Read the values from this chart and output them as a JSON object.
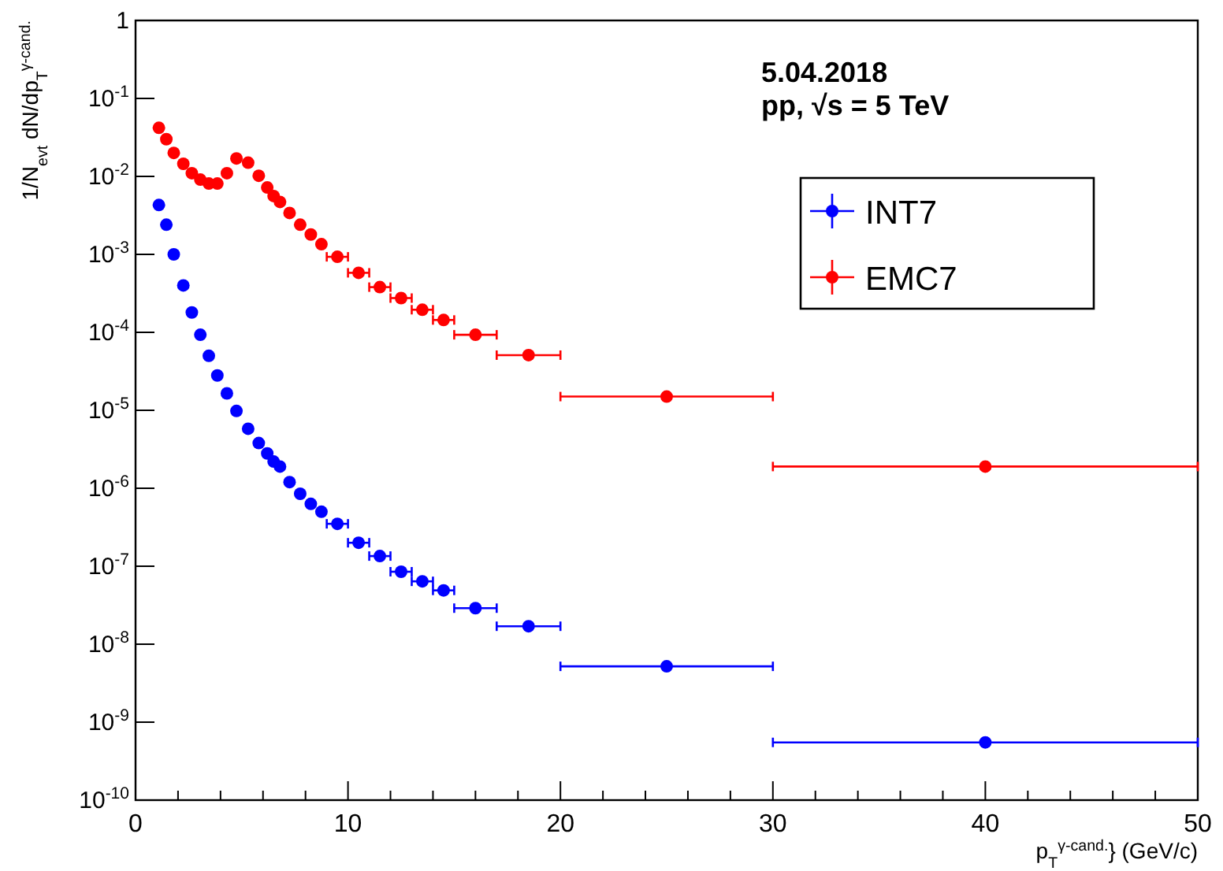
{
  "chart_data": {
    "type": "scatter",
    "xlabel": "p$_{T}$$^{γ-cand.}$} (GeV/c)",
    "ylabel": "1/N$_{evt}$ dN/dp$_{T}$$^{γ-cand.}$",
    "annotations": [
      "5.04.2018",
      "pp, √s = 5 TeV"
    ],
    "x": [
      1.1,
      1.45,
      1.8,
      2.25,
      2.65,
      3.05,
      3.45,
      3.85,
      4.3,
      4.75,
      5.3,
      5.8,
      6.2,
      6.5,
      6.8,
      7.25,
      7.75,
      8.25,
      8.75,
      9.5,
      10.5,
      11.5,
      12.5,
      13.5,
      14.5,
      16,
      18.5,
      25,
      40
    ],
    "series": [
      {
        "name": "INT7",
        "color": "#0000ff",
        "values": [
          0.0043,
          0.0024,
          0.001,
          0.0004,
          0.00018,
          9.3e-05,
          5e-05,
          2.8e-05,
          1.65e-05,
          9.8e-06,
          5.8e-06,
          3.8e-06,
          2.8e-06,
          2.2e-06,
          1.9e-06,
          1.2e-06,
          8.5e-07,
          6.3e-07,
          5e-07,
          3.5e-07,
          2e-07,
          1.35e-07,
          8.5e-08,
          6.4e-08,
          4.9e-08,
          2.9e-08,
          1.7e-08,
          5.2e-09,
          5.5e-10
        ],
        "xerrors": [
          null,
          null,
          null,
          null,
          null,
          null,
          null,
          null,
          null,
          null,
          null,
          null,
          null,
          null,
          null,
          null,
          null,
          null,
          null,
          0.5,
          0.5,
          0.5,
          0.5,
          0.5,
          0.5,
          1,
          1.5,
          5,
          10
        ]
      },
      {
        "name": "EMC7",
        "color": "#ff0000",
        "values": [
          0.042,
          0.03,
          0.02,
          0.0145,
          0.011,
          0.0091,
          0.0081,
          0.0081,
          0.011,
          0.017,
          0.015,
          0.0102,
          0.0072,
          0.0056,
          0.0047,
          0.0034,
          0.0024,
          0.0018,
          0.00135,
          0.00093,
          0.00058,
          0.00038,
          0.000275,
          0.000195,
          0.000144,
          9.3e-05,
          5.1e-05,
          1.5e-05,
          1.9e-06
        ],
        "xerrors": [
          null,
          null,
          null,
          null,
          null,
          null,
          null,
          null,
          null,
          null,
          null,
          null,
          null,
          null,
          null,
          null,
          null,
          null,
          null,
          0.5,
          0.5,
          0.5,
          0.5,
          0.5,
          0.5,
          1,
          1.5,
          5,
          10
        ]
      }
    ],
    "log": "y",
    "xlim": [
      0,
      50
    ],
    "xticks": [
      0,
      {
        "value": 2,
        "label": null
      },
      {
        "value": 4,
        "label": null
      },
      {
        "value": 6,
        "label": null
      },
      {
        "value": 8,
        "label": null
      },
      10,
      {
        "value": 12,
        "label": null
      },
      {
        "value": 14,
        "label": null
      },
      {
        "value": 16,
        "label": null
      },
      {
        "value": 18,
        "label": null
      },
      20,
      {
        "value": 22,
        "label": null
      },
      {
        "value": 24,
        "label": null
      },
      {
        "value": 26,
        "label": null
      },
      {
        "value": 28,
        "label": null
      },
      30,
      {
        "value": 32,
        "label": null
      },
      {
        "value": 34,
        "label": null
      },
      {
        "value": 36,
        "label": null
      },
      {
        "value": 38,
        "label": null
      },
      40,
      {
        "value": 42,
        "label": null
      },
      {
        "value": 44,
        "label": null
      },
      {
        "value": 46,
        "label": null
      },
      {
        "value": 48,
        "label": null
      },
      50
    ],
    "ylim": [
      1e-10,
      1
    ],
    "yticks": [
      {
        "value": 1e-10,
        "label": "10$^{-10}$"
      },
      {
        "value": 1e-09,
        "label": "10$^{-9}$"
      },
      {
        "value": 1e-08,
        "label": "10$^{-8}$"
      },
      {
        "value": 1e-07,
        "label": "10$^{-7}$"
      },
      {
        "value": 1e-06,
        "label": "10$^{-6}$"
      },
      {
        "value": 1e-05,
        "label": "10$^{-5}$"
      },
      {
        "value": 0.0001,
        "label": "10$^{-4}$"
      },
      {
        "value": 0.001,
        "label": "10$^{-3}$"
      },
      {
        "value": 0.01,
        "label": "10$^{-2}$"
      },
      {
        "value": 0.1,
        "label": "10$^{-1}$"
      },
      1
    ],
    "marker": "circle",
    "legend": "top right",
    "grid": false
  }
}
